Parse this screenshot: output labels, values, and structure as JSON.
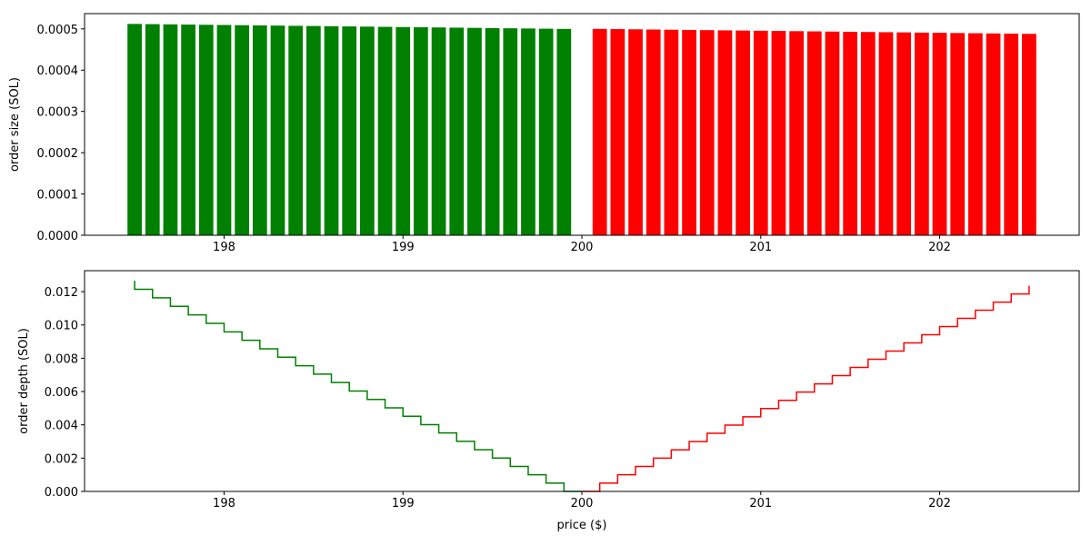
{
  "chart_data": [
    {
      "type": "bar",
      "ylabel": "order size (SOL)",
      "xlim": [
        197.22,
        202.78
      ],
      "xticks": [
        198,
        199,
        200,
        201,
        202
      ],
      "ylim": [
        0,
        0.000537
      ],
      "yticks": [
        {
          "value": 0,
          "label": "0.0000"
        },
        {
          "value": 0.0001,
          "label": "0.0001"
        },
        {
          "value": 0.0002,
          "label": "0.0002"
        },
        {
          "value": 0.0003,
          "label": "0.0003"
        },
        {
          "value": 0.0004,
          "label": "0.0004"
        },
        {
          "value": 0.0005,
          "label": "0.0005"
        }
      ],
      "bar_width": 0.08,
      "series": [
        {
          "color": "#008000",
          "x": [
            197.5,
            197.6,
            197.7,
            197.8,
            197.9,
            198.0,
            198.1,
            198.2,
            198.3,
            198.4,
            198.5,
            198.6,
            198.7,
            198.8,
            198.9,
            199.0,
            199.1,
            199.2,
            199.3,
            199.4,
            199.5,
            199.6,
            199.7,
            199.8,
            199.9
          ],
          "values": [
            0.000512,
            0.0005115,
            0.000511,
            0.0005105,
            0.00051,
            0.0005095,
            0.000509,
            0.0005085,
            0.000508,
            0.0005075,
            0.000507,
            0.0005065,
            0.000506,
            0.0005055,
            0.000505,
            0.0005045,
            0.000504,
            0.0005035,
            0.000503,
            0.0005025,
            0.000502,
            0.0005015,
            0.000501,
            0.0005005,
            0.0005
          ]
        },
        {
          "color": "#ff0000",
          "x": [
            200.1,
            200.2,
            200.3,
            200.4,
            200.5,
            200.6,
            200.7,
            200.8,
            200.9,
            201.0,
            201.1,
            201.2,
            201.3,
            201.4,
            201.5,
            201.6,
            201.7,
            201.8,
            201.9,
            202.0,
            202.1,
            202.2,
            202.3,
            202.4,
            202.5
          ],
          "values": [
            0.0005,
            0.0004995,
            0.000499,
            0.0004985,
            0.000498,
            0.0004975,
            0.000497,
            0.0004965,
            0.000496,
            0.0004955,
            0.000495,
            0.0004945,
            0.000494,
            0.0004935,
            0.000493,
            0.0004925,
            0.000492,
            0.0004915,
            0.000491,
            0.0004905,
            0.00049,
            0.0004895,
            0.000489,
            0.0004885,
            0.000488
          ]
        }
      ]
    },
    {
      "type": "line",
      "xlabel": "price ($)",
      "ylabel": "order depth (SOL)",
      "xlim": [
        197.22,
        202.78
      ],
      "xticks": [
        198,
        199,
        200,
        201,
        202
      ],
      "ylim": [
        0,
        0.01326
      ],
      "yticks": [
        {
          "value": 0,
          "label": "0.000"
        },
        {
          "value": 0.002,
          "label": "0.002"
        },
        {
          "value": 0.004,
          "label": "0.004"
        },
        {
          "value": 0.006,
          "label": "0.006"
        },
        {
          "value": 0.008,
          "label": "0.008"
        },
        {
          "value": 0.01,
          "label": "0.010"
        },
        {
          "value": 0.012,
          "label": "0.012"
        }
      ],
      "series": [
        {
          "color": "#008000",
          "step": "pre",
          "x": [
            197.5,
            197.6,
            197.7,
            197.8,
            197.9,
            198.0,
            198.1,
            198.2,
            198.3,
            198.4,
            198.5,
            198.6,
            198.7,
            198.8,
            198.9,
            199.0,
            199.1,
            199.2,
            199.3,
            199.4,
            199.5,
            199.6,
            199.7,
            199.8,
            199.9,
            200.0
          ],
          "values": [
            0.01265,
            0.012138,
            0.0116265,
            0.0111155,
            0.010605,
            0.010095,
            0.0095855,
            0.0090765,
            0.008568,
            0.00806,
            0.0075525,
            0.0070455,
            0.006539,
            0.006033,
            0.0055275,
            0.0050225,
            0.004518,
            0.004014,
            0.0035105,
            0.0030075,
            0.002505,
            0.002003,
            0.0015015,
            0.0010005,
            0.0005,
            0
          ]
        },
        {
          "color": "#ff0000",
          "step": "post",
          "x": [
            200.0,
            200.1,
            200.2,
            200.3,
            200.4,
            200.5,
            200.6,
            200.7,
            200.8,
            200.9,
            201.0,
            201.1,
            201.2,
            201.3,
            201.4,
            201.5,
            201.6,
            201.7,
            201.8,
            201.9,
            202.0,
            202.1,
            202.2,
            202.3,
            202.4,
            202.5
          ],
          "values": [
            0,
            0.0005,
            0.0009995,
            0.0014985,
            0.001997,
            0.002495,
            0.0029925,
            0.0034895,
            0.003986,
            0.004482,
            0.0049775,
            0.0054725,
            0.005967,
            0.006461,
            0.0069545,
            0.0074475,
            0.00794,
            0.008432,
            0.0089235,
            0.0094145,
            0.009905,
            0.010395,
            0.0108845,
            0.0113735,
            0.011862,
            0.01235
          ]
        }
      ]
    }
  ]
}
